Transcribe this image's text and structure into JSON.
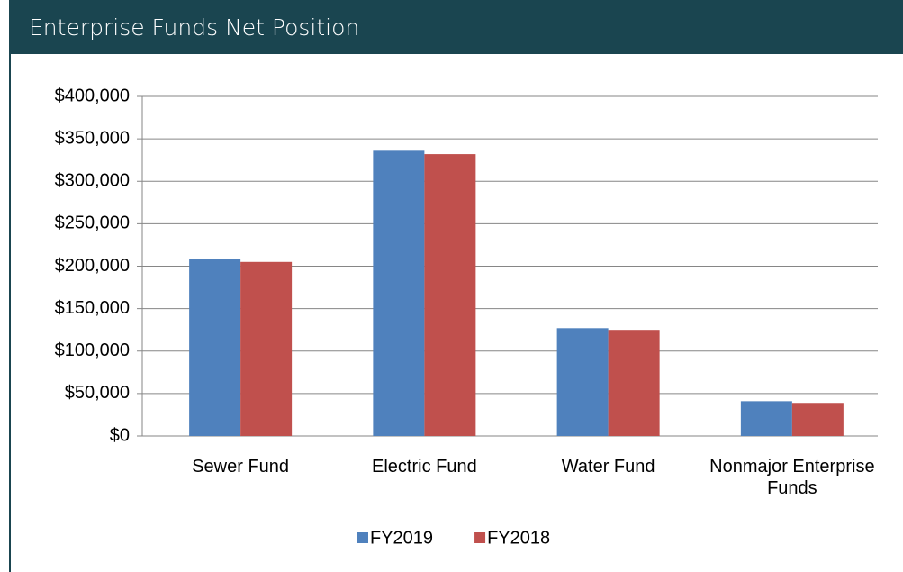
{
  "chart_data": {
    "type": "bar",
    "title": "Enterprise Funds Net Position",
    "categories": [
      "Sewer Fund",
      "Electric Fund",
      "Water Fund",
      "Nonmajor Enterprise Funds"
    ],
    "series": [
      {
        "name": "FY2019",
        "color": "#4f81bd",
        "values": [
          209000,
          336000,
          127000,
          41000
        ]
      },
      {
        "name": "FY2018",
        "color": "#c0504d",
        "values": [
          205000,
          332000,
          125000,
          39000
        ]
      }
    ],
    "ylim": [
      0,
      400000
    ],
    "yticks": [
      {
        "value": 0,
        "label": "$0"
      },
      {
        "value": 50000,
        "label": "$50,000"
      },
      {
        "value": 100000,
        "label": "$100,000"
      },
      {
        "value": 150000,
        "label": "$150,000"
      },
      {
        "value": 200000,
        "label": "$200,000"
      },
      {
        "value": 250000,
        "label": "$250,000"
      },
      {
        "value": 300000,
        "label": "$300,000"
      },
      {
        "value": 350000,
        "label": "$350,000"
      },
      {
        "value": 400000,
        "label": "$400,000"
      }
    ],
    "grid": true,
    "legend": "bottom"
  }
}
